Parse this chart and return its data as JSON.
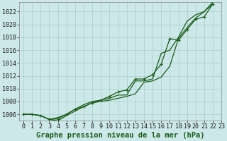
{
  "background_color": "#cce8e8",
  "grid_color": "#aacece",
  "line_color": "#1a5c1a",
  "xlabel": "Graphe pression niveau de la mer (hPa)",
  "xlabel_fontsize": 7.5,
  "ylim": [
    1005.0,
    1023.5
  ],
  "xlim": [
    -0.5,
    23
  ],
  "yticks": [
    1006,
    1008,
    1010,
    1012,
    1014,
    1016,
    1018,
    1020,
    1022
  ],
  "xticks": [
    0,
    1,
    2,
    3,
    4,
    5,
    6,
    7,
    8,
    9,
    10,
    11,
    12,
    13,
    14,
    15,
    16,
    17,
    18,
    19,
    20,
    21,
    22,
    23
  ],
  "series1": [
    1006.0,
    1006.0,
    1005.8,
    1005.2,
    1005.0,
    1005.8,
    1006.5,
    1007.2,
    1007.8,
    1008.0,
    1008.2,
    1008.5,
    1008.8,
    1009.2,
    1011.0,
    1011.2,
    1011.8,
    1013.5,
    1017.8,
    1019.5,
    1021.0,
    1022.0,
    1023.2
  ],
  "series2": [
    1006.0,
    1006.0,
    1005.8,
    1005.2,
    1005.5,
    1006.0,
    1006.8,
    1007.5,
    1008.0,
    1008.2,
    1008.5,
    1009.0,
    1009.0,
    1011.2,
    1011.2,
    1011.5,
    1015.5,
    1016.0,
    1018.0,
    1020.5,
    1021.5,
    1022.0,
    1023.5
  ],
  "series3": [
    1006.0,
    1006.0,
    1005.8,
    1005.2,
    1005.3,
    1006.0,
    1006.8,
    1007.2,
    1007.8,
    1008.2,
    1008.8,
    1009.5,
    1009.8,
    1011.5,
    1011.5,
    1012.2,
    1013.8,
    1017.8,
    1017.5,
    1019.2,
    1020.8,
    1021.2,
    1023.2
  ],
  "tick_fontsize": 6,
  "tick_color": "#1a1a1a"
}
